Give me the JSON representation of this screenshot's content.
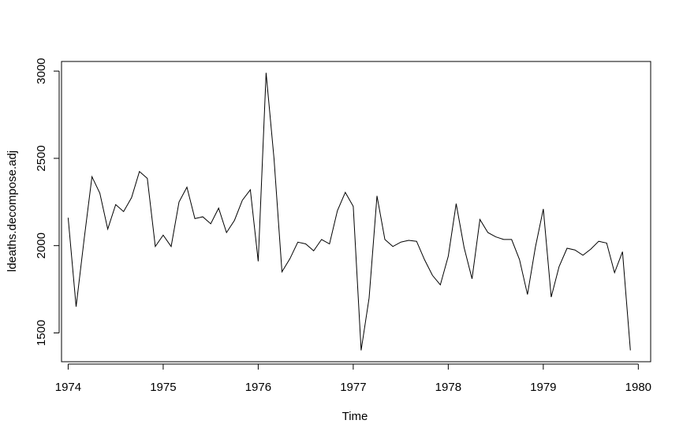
{
  "chart_data": {
    "type": "line",
    "xlabel": "Time",
    "ylabel": "ldeaths.decompose.adj",
    "xlim": [
      1973.93,
      1980.13
    ],
    "ylim": [
      1335,
      3055
    ],
    "x_ticks": [
      1974,
      1975,
      1976,
      1977,
      1978,
      1979,
      1980
    ],
    "y_ticks": [
      1500,
      2000,
      2500,
      3000
    ],
    "grid": false,
    "start": 1974,
    "frequency": 12,
    "series": [
      {
        "values": [
          2160,
          1650,
          2030,
          2395,
          2300,
          2095,
          2235,
          2195,
          2275,
          2425,
          2385,
          1995,
          2060,
          1995,
          2250,
          2335,
          2155,
          2165,
          2125,
          2215,
          2075,
          2145,
          2260,
          2320,
          1910,
          2990,
          2495,
          1850,
          1925,
          2020,
          2010,
          1970,
          2035,
          2010,
          2200,
          2305,
          2225,
          1400,
          1700,
          2285,
          2035,
          1995,
          2020,
          2030,
          2025,
          1920,
          1830,
          1775,
          1940,
          2240,
          1990,
          1810,
          2150,
          2075,
          2050,
          2035,
          2035,
          1920,
          1720,
          1990,
          2210,
          1705,
          1880,
          1985,
          1975,
          1945,
          1980,
          2025,
          2015,
          1845,
          1965,
          1400
        ]
      }
    ]
  }
}
